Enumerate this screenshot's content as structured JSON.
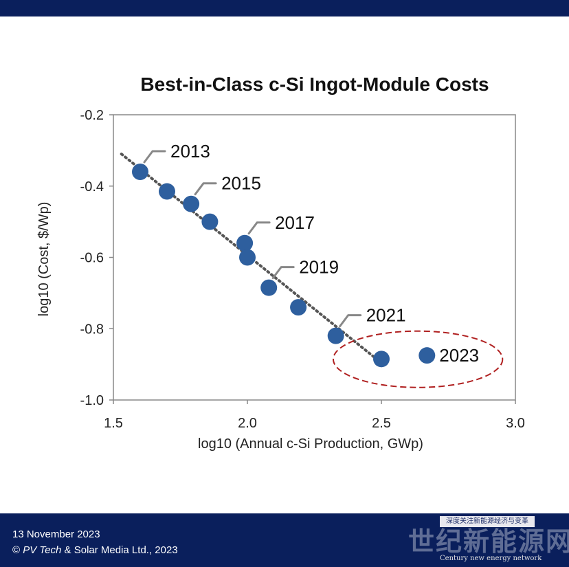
{
  "chart_data": {
    "type": "scatter",
    "title": "Best-in-Class c-Si Ingot-Module Costs",
    "xlabel": "log10 (Annual c-Si Production, GWp)",
    "ylabel": "log10 (Cost, $/Wp)",
    "xlim": [
      1.5,
      3.0
    ],
    "ylim": [
      -1.0,
      -0.2
    ],
    "xticks": [
      "1.5",
      "2.0",
      "2.5",
      "3.0"
    ],
    "yticks": [
      "-0.2",
      "-0.4",
      "-0.6",
      "-0.8",
      "-1.0"
    ],
    "grid": false,
    "marker_color": "#2e5f9e",
    "trendline_color": "#555555",
    "highlight_color": "#b02020",
    "points": [
      {
        "x": 1.6,
        "y": -0.36
      },
      {
        "x": 1.7,
        "y": -0.415
      },
      {
        "x": 1.79,
        "y": -0.45
      },
      {
        "x": 1.86,
        "y": -0.5
      },
      {
        "x": 1.99,
        "y": -0.56
      },
      {
        "x": 2.0,
        "y": -0.6
      },
      {
        "x": 2.08,
        "y": -0.685
      },
      {
        "x": 2.19,
        "y": -0.74
      },
      {
        "x": 2.33,
        "y": -0.82
      },
      {
        "x": 2.5,
        "y": -0.885
      },
      {
        "x": 2.67,
        "y": -0.875
      }
    ],
    "trendline": {
      "x": [
        1.53,
        2.49
      ],
      "y": [
        -0.31,
        -0.89
      ],
      "style": "dotted"
    },
    "annotations": [
      {
        "text": "2013",
        "point_index": 0
      },
      {
        "text": "2015",
        "point_index": 2
      },
      {
        "text": "2017",
        "point_index": 4
      },
      {
        "text": "2019",
        "point_index": 6
      },
      {
        "text": "2021",
        "point_index": 8
      },
      {
        "text": "2023",
        "point_index": 10
      }
    ],
    "highlight": {
      "shape": "dashed-ellipse",
      "encloses_points": [
        9,
        10
      ]
    }
  },
  "footer": {
    "date": "13 November  2023",
    "copyright_prefix": "© ",
    "copyright_italic": "PV Tech",
    "copyright_suffix": " & Solar Media Ltd., 2023"
  },
  "watermark": {
    "banner": "深度关注新能源经济与变革",
    "title": "世纪新能源网",
    "subtitle": "Century new energy network"
  }
}
